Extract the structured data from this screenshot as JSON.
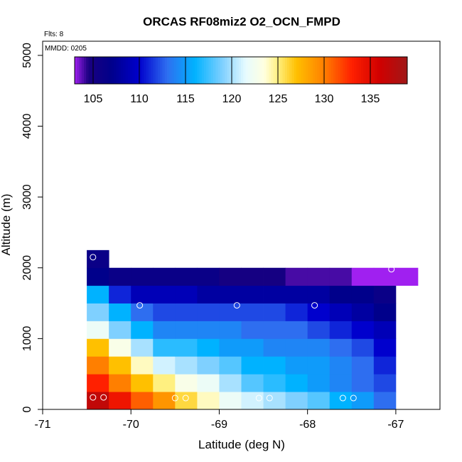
{
  "chart_data": {
    "type": "heatmap",
    "title": "ORCAS RF08miz2 O2_OCN_FMPD",
    "xlabel": "Latitude (deg N)",
    "ylabel": "Altitude (m)",
    "xlim": [
      -71,
      -66.5
    ],
    "ylim": [
      0,
      5200
    ],
    "x_ticks": [
      -71,
      -70,
      -69,
      -68,
      -67
    ],
    "x_tick_labels": [
      "-71",
      "-70",
      "-69",
      "-68",
      "-67"
    ],
    "y_ticks": [
      0,
      1000,
      2000,
      3000,
      4000,
      5000
    ],
    "y_tick_labels": [
      "0",
      "1000",
      "2000",
      "3000",
      "4000",
      "5000"
    ],
    "flts_label": "Flts: 8",
    "mmdd_label": "MMDD: 0205",
    "colorbar": {
      "min": 103,
      "max": 139,
      "ticks": [
        105,
        110,
        115,
        120,
        125,
        130,
        135
      ],
      "tick_labels": [
        "105",
        "110",
        "115",
        "120",
        "125",
        "130",
        "135"
      ],
      "stops": [
        {
          "v": 103,
          "color": "#a020f0"
        },
        {
          "v": 104.5,
          "color": "#1a0080"
        },
        {
          "v": 107,
          "color": "#00008b"
        },
        {
          "v": 110,
          "color": "#0000cd"
        },
        {
          "v": 113,
          "color": "#2e6ef0"
        },
        {
          "v": 116,
          "color": "#00b2ff"
        },
        {
          "v": 119,
          "color": "#7fd0ff"
        },
        {
          "v": 121.5,
          "color": "#e6fbff"
        },
        {
          "v": 123.5,
          "color": "#ffffe0"
        },
        {
          "v": 125,
          "color": "#fff080"
        },
        {
          "v": 127,
          "color": "#ffc000"
        },
        {
          "v": 130,
          "color": "#ff7f00"
        },
        {
          "v": 133,
          "color": "#ff2000"
        },
        {
          "v": 136,
          "color": "#d00000"
        },
        {
          "v": 139,
          "color": "#a01818"
        }
      ]
    },
    "cells": {
      "lat_step": 0.25,
      "alt_step": 250,
      "rows": [
        {
          "alt": 0,
          "lat0": -70.5,
          "values": [
            137,
            134,
            131,
            129,
            126,
            124,
            122,
            121,
            120,
            119,
            118,
            116,
            115,
            113
          ]
        },
        {
          "alt": 250,
          "lat0": -70.5,
          "values": [
            133,
            130,
            127,
            125,
            123,
            122,
            120,
            118,
            117,
            116,
            115,
            114,
            113,
            112
          ]
        },
        {
          "alt": 500,
          "lat0": -70.5,
          "values": [
            130,
            127,
            124,
            121,
            120,
            119,
            118,
            116,
            116,
            115,
            115,
            114,
            113,
            111
          ]
        },
        {
          "alt": 750,
          "lat0": -70.5,
          "values": [
            127,
            123,
            120,
            117,
            117,
            116,
            115,
            115,
            114,
            114,
            114,
            113,
            112,
            110
          ]
        },
        {
          "alt": 1000,
          "lat0": -70.5,
          "values": [
            122,
            119,
            116,
            114,
            114,
            114,
            114,
            113,
            113,
            113,
            112,
            111,
            110,
            109
          ]
        },
        {
          "alt": 1250,
          "lat0": -70.5,
          "values": [
            119,
            116,
            113,
            112,
            112,
            112,
            112,
            112,
            112,
            111,
            110,
            109,
            108,
            107
          ]
        },
        {
          "alt": 1500,
          "lat0": -70.5,
          "values": [
            116,
            111,
            109,
            109,
            109,
            108,
            108,
            108,
            108,
            108,
            108,
            107,
            107,
            106
          ]
        },
        {
          "alt": 1750,
          "lat0": -70.5,
          "values": [
            107,
            106,
            106,
            106,
            106,
            106,
            105,
            105,
            105,
            104,
            104,
            104,
            103,
            103,
            103
          ]
        },
        {
          "alt": 2000,
          "lat0": -70.5,
          "values": [
            106
          ]
        }
      ]
    },
    "markers": [
      {
        "lat": -70.43,
        "alt": 2150
      },
      {
        "lat": -67.05,
        "alt": 1980
      },
      {
        "lat": -69.9,
        "alt": 1470
      },
      {
        "lat": -68.8,
        "alt": 1470
      },
      {
        "lat": -67.92,
        "alt": 1470
      },
      {
        "lat": -70.43,
        "alt": 170
      },
      {
        "lat": -70.31,
        "alt": 170
      },
      {
        "lat": -69.5,
        "alt": 160
      },
      {
        "lat": -69.38,
        "alt": 160
      },
      {
        "lat": -68.55,
        "alt": 160
      },
      {
        "lat": -68.43,
        "alt": 160
      },
      {
        "lat": -67.6,
        "alt": 160
      },
      {
        "lat": -67.48,
        "alt": 160
      }
    ]
  }
}
